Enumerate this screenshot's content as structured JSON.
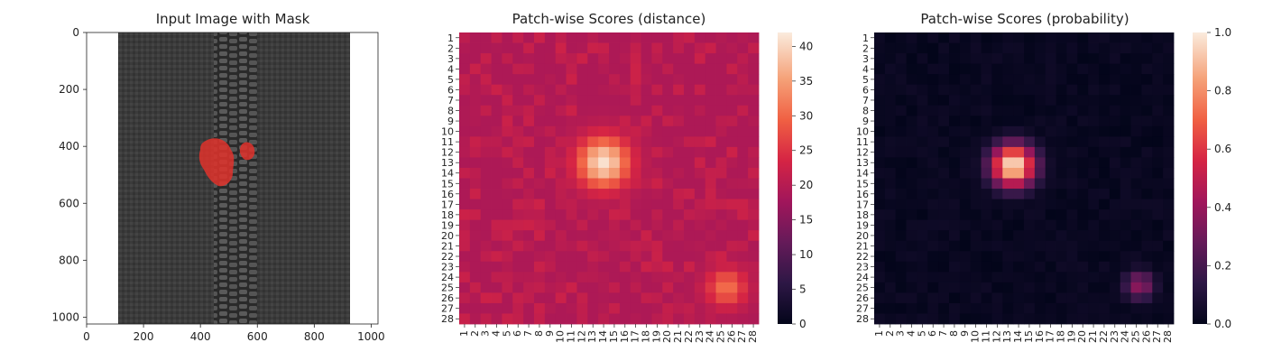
{
  "chart_data": [
    {
      "type": "image",
      "title": "Input Image with Mask",
      "x_ticks": [
        0,
        200,
        400,
        600,
        800,
        1000
      ],
      "y_ticks": [
        0,
        200,
        400,
        600,
        800,
        1000
      ],
      "xlim": [
        0,
        1024
      ],
      "ylim": [
        1024,
        0
      ],
      "overlay_color": "#e0322c",
      "background_color": "#3a3a3a"
    },
    {
      "type": "heatmap",
      "title": "Patch-wise Scores (distance)",
      "rows": 28,
      "cols": 28,
      "x_ticks": [
        "1",
        "2",
        "3",
        "4",
        "5",
        "6",
        "7",
        "8",
        "9",
        "10",
        "11",
        "12",
        "13",
        "14",
        "15",
        "16",
        "17",
        "18",
        "19",
        "20",
        "21",
        "22",
        "23",
        "24",
        "25",
        "26",
        "27",
        "28"
      ],
      "y_ticks": [
        "1",
        "2",
        "3",
        "4",
        "5",
        "6",
        "7",
        "8",
        "9",
        "10",
        "11",
        "12",
        "13",
        "14",
        "15",
        "16",
        "17",
        "18",
        "19",
        "20",
        "21",
        "22",
        "23",
        "24",
        "25",
        "26",
        "27",
        "28"
      ],
      "colorbar": {
        "min": 0,
        "max": 42,
        "ticks": [
          "0",
          "5",
          "10",
          "15",
          "20",
          "25",
          "30",
          "35",
          "40"
        ]
      },
      "colormap": "rocket",
      "baseline": 19,
      "hotspots": [
        {
          "row": 13,
          "col": 14,
          "peak": 41,
          "spread": 1.7
        },
        {
          "row": 25,
          "col": 25.5,
          "peak": 31,
          "spread": 1.3
        }
      ]
    },
    {
      "type": "heatmap",
      "title": "Patch-wise Scores (probability)",
      "rows": 28,
      "cols": 28,
      "x_ticks": [
        "1",
        "2",
        "3",
        "4",
        "5",
        "6",
        "7",
        "8",
        "9",
        "10",
        "11",
        "12",
        "13",
        "14",
        "15",
        "16",
        "17",
        "18",
        "19",
        "20",
        "21",
        "22",
        "23",
        "24",
        "25",
        "26",
        "27",
        "28"
      ],
      "y_ticks": [
        "1",
        "2",
        "3",
        "4",
        "5",
        "6",
        "7",
        "8",
        "9",
        "10",
        "11",
        "12",
        "13",
        "14",
        "15",
        "16",
        "17",
        "18",
        "19",
        "20",
        "21",
        "22",
        "23",
        "24",
        "25",
        "26",
        "27",
        "28"
      ],
      "colorbar": {
        "min": 0,
        "max": 1,
        "ticks": [
          "0.0",
          "0.2",
          "0.4",
          "0.6",
          "0.8",
          "1.0"
        ]
      },
      "colormap": "rocket",
      "baseline": 0,
      "hotspots": [
        {
          "row": 13.3,
          "col": 13.5,
          "peak": 1.0,
          "spread": 1.45
        },
        {
          "row": 24.8,
          "col": 25.3,
          "peak": 0.38,
          "spread": 1.0
        }
      ]
    }
  ]
}
